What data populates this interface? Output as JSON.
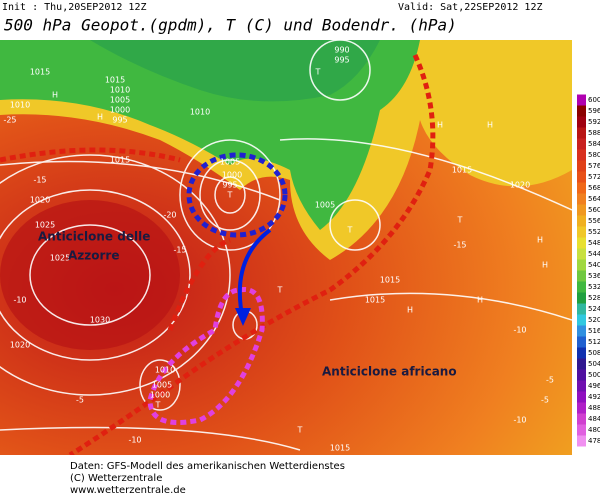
{
  "header": {
    "init": "Init : Thu,20SEP2012 12Z",
    "valid": "Valid: Sat,22SEP2012 12Z",
    "title": "500 hPa Geopot.(gpdm), T (C) und Bodendr. (hPa)"
  },
  "annotations": {
    "azores": [
      "Anticiclone delle",
      "Azzorre"
    ],
    "africa": "Anticiclone africano"
  },
  "map_labels": [
    "1020",
    "1025",
    "1030",
    "1015",
    "H",
    "1010",
    "1005",
    "1000",
    "995",
    "T",
    "1015",
    "H",
    "1010",
    "1005",
    "T",
    "H",
    "H",
    "T",
    "H",
    "1015",
    "1015",
    "1010",
    "1005",
    "1000",
    "T",
    "1015",
    "T",
    "-15",
    "-10",
    "-5",
    "-20",
    "-25",
    "-15",
    "-10",
    "-10",
    "-5",
    "1015",
    "1010",
    "1005",
    "1000",
    "995",
    "T",
    "990",
    "995",
    "1015",
    "1020",
    "H",
    "H",
    "H",
    "T",
    "-10",
    "-15",
    "1025",
    "1020",
    "-5"
  ],
  "colorbar": {
    "ticks": [
      600,
      596,
      592,
      588,
      584,
      580,
      576,
      572,
      568,
      564,
      560,
      556,
      552,
      548,
      544,
      540,
      536,
      532,
      528,
      524,
      520,
      516,
      512,
      508,
      504,
      500,
      496,
      492,
      488,
      484,
      480,
      478
    ],
    "colors": [
      "#b000b0",
      "#8b0000",
      "#a00010",
      "#b81414",
      "#c82020",
      "#d83020",
      "#e04018",
      "#e85018",
      "#f06818",
      "#f08020",
      "#f09820",
      "#f0b020",
      "#f0c828",
      "#e8e030",
      "#c8e040",
      "#a0d840",
      "#70c840",
      "#40b840",
      "#20a040",
      "#30b8a0",
      "#30c8e0",
      "#3090e0",
      "#2060d0",
      "#1030b0",
      "#301890",
      "#5010a0",
      "#7010b0",
      "#9010c0",
      "#b020c8",
      "#d040d0",
      "#e060e0",
      "#f090f0"
    ]
  },
  "footer": [
    "Daten: GFS-Modell des amerikanischen Wetterdienstes",
    "(C) Wetterzentrale",
    "www.wetterzentrale.de"
  ]
}
